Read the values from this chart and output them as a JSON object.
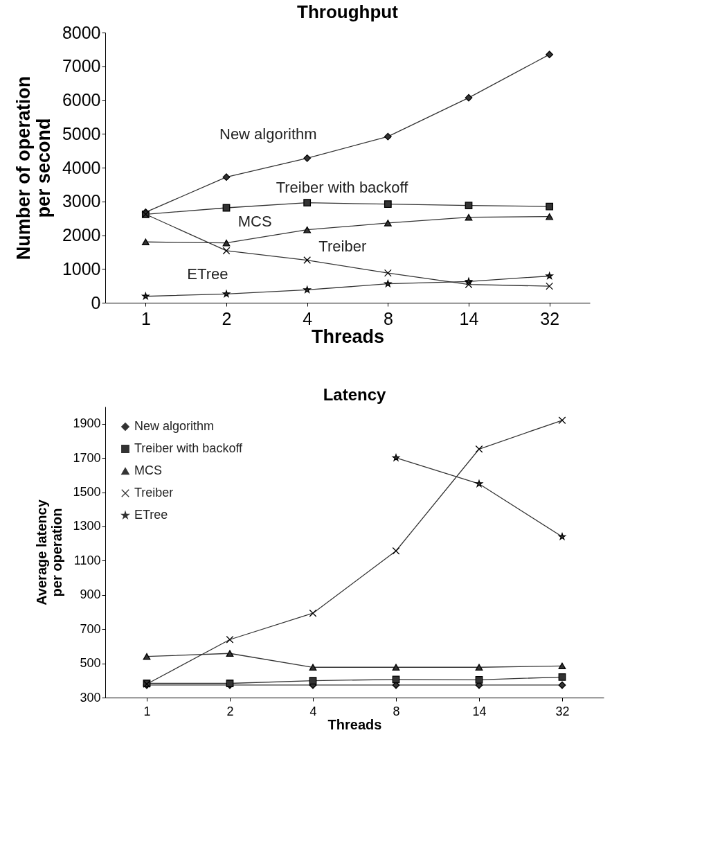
{
  "chart_data": [
    {
      "type": "line",
      "title": "Throughput",
      "xlabel": "Threads",
      "ylabel": "Number of operation per second",
      "categories": [
        "1",
        "2",
        "4",
        "8",
        "14",
        "32"
      ],
      "ylim": [
        0,
        8000
      ],
      "yticks": [
        0,
        1000,
        2000,
        3000,
        4000,
        5000,
        6000,
        7000,
        8000
      ],
      "grid": false,
      "legend": false,
      "series": [
        {
          "name": "New algorithm",
          "color": "#333333",
          "marker": "diamond",
          "values": [
            2680,
            3720,
            4280,
            4920,
            6070,
            7350
          ]
        },
        {
          "name": "Treiber with backoff",
          "color": "#333333",
          "marker": "square",
          "values": [
            2620,
            2810,
            2960,
            2920,
            2880,
            2850
          ]
        },
        {
          "name": "MCS",
          "color": "#333333",
          "marker": "triangle",
          "values": [
            1800,
            1770,
            2160,
            2360,
            2530,
            2550
          ]
        },
        {
          "name": "Treiber",
          "color": "#333333",
          "marker": "cross",
          "values": [
            2620,
            1540,
            1260,
            880,
            540,
            490
          ]
        },
        {
          "name": "ETree",
          "color": "#333333",
          "marker": "star",
          "values": [
            190,
            260,
            380,
            560,
            630,
            790
          ]
        }
      ]
    },
    {
      "type": "line",
      "title": "Latency",
      "xlabel": "Threads",
      "ylabel": "Average latency per operation",
      "categories": [
        "1",
        "2",
        "4",
        "8",
        "14",
        "32"
      ],
      "ylim": [
        300,
        2000
      ],
      "yticks": [
        300,
        500,
        700,
        900,
        1100,
        1300,
        1500,
        1700,
        1900
      ],
      "grid": false,
      "legend": "top left",
      "series": [
        {
          "name": "New algorithm",
          "color": "#333333",
          "marker": "diamond",
          "values": [
            373,
            373,
            373,
            373,
            373,
            373
          ]
        },
        {
          "name": "Treiber with backoff",
          "color": "#333333",
          "marker": "square",
          "values": [
            383,
            383,
            399,
            406,
            404,
            420
          ]
        },
        {
          "name": "MCS",
          "color": "#333333",
          "marker": "triangle",
          "values": [
            540,
            558,
            477,
            477,
            477,
            485
          ]
        },
        {
          "name": "Treiber",
          "color": "#333333",
          "marker": "cross",
          "values": [
            379,
            639,
            793,
            1157,
            1752,
            1920
          ]
        },
        {
          "name": "ETree",
          "color": "#333333",
          "marker": "star",
          "values": [
            null,
            null,
            null,
            1701,
            1549,
            1240
          ]
        }
      ]
    }
  ]
}
